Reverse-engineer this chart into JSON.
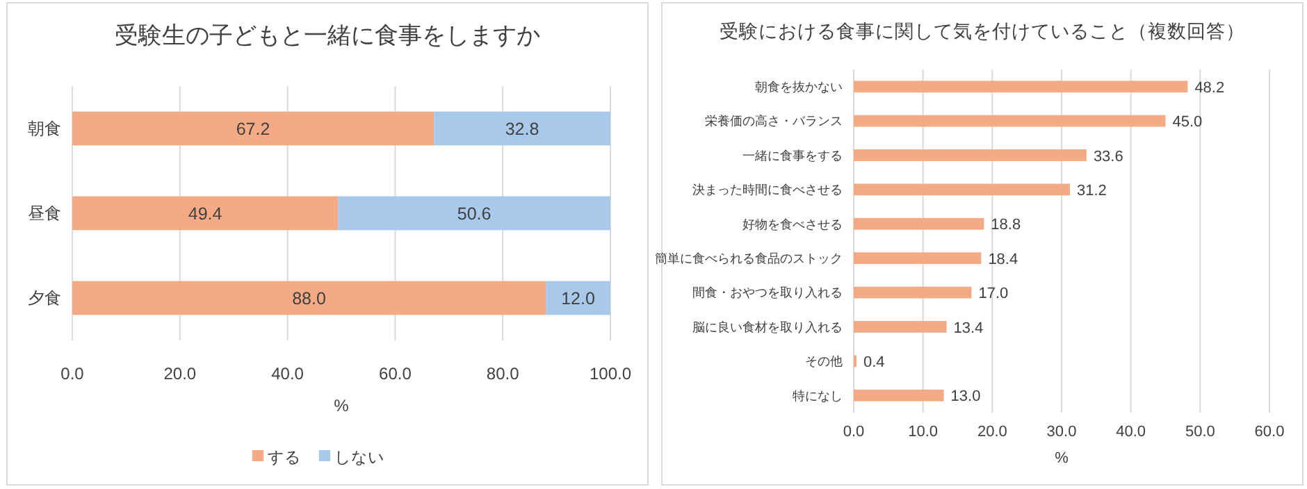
{
  "chart_data": [
    {
      "type": "bar",
      "orientation": "horizontal",
      "stacked": true,
      "title": "受験生の子どもと一緒に食事をしますか",
      "xlabel": "%",
      "categories": [
        "朝食",
        "昼食",
        "夕食"
      ],
      "series": [
        {
          "name": "する",
          "color": "#f4aa85",
          "values": [
            67.2,
            49.4,
            88.0
          ],
          "value_labels": [
            "67.2",
            "49.4",
            "88.0"
          ]
        },
        {
          "name": "しない",
          "color": "#a8c9ea",
          "values": [
            32.8,
            50.6,
            12.0
          ],
          "value_labels": [
            "32.8",
            "50.6",
            "12.0"
          ]
        }
      ],
      "xlim": [
        0,
        100
      ],
      "xticks": [
        {
          "value": 0,
          "label": "0.0"
        },
        {
          "value": 20,
          "label": "20.0"
        },
        {
          "value": 40,
          "label": "40.0"
        },
        {
          "value": 60,
          "label": "60.0"
        },
        {
          "value": 80,
          "label": "80.0"
        },
        {
          "value": 100,
          "label": "100.0"
        }
      ],
      "grid": "x",
      "legend": "bottom"
    },
    {
      "type": "bar",
      "orientation": "horizontal",
      "title": "受験における食事に関して気を付けていること（複数回答）",
      "xlabel": "%",
      "categories": [
        "朝食を抜かない",
        "栄養価の高さ・バランス",
        "一緒に食事をする",
        "決まった時間に食べさせる",
        "好物を食べさせる",
        "簡単に食べられる食品のストック",
        "間食・おやつを取り入れる",
        "脳に良い食材を取り入れる",
        "その他",
        "特になし"
      ],
      "series": [
        {
          "color": "#f4aa85",
          "values": [
            48.2,
            45.0,
            33.6,
            31.2,
            18.8,
            18.4,
            17.0,
            13.4,
            0.4,
            13.0
          ],
          "value_labels": [
            "48.2",
            "45.0",
            "33.6",
            "31.2",
            "18.8",
            "18.4",
            "17.0",
            "13.4",
            "0.4",
            "13.0"
          ]
        }
      ],
      "xlim": [
        0,
        60
      ],
      "xticks": [
        {
          "value": 0,
          "label": "0.0"
        },
        {
          "value": 10,
          "label": "10.0"
        },
        {
          "value": 20,
          "label": "20.0"
        },
        {
          "value": 30,
          "label": "30.0"
        },
        {
          "value": 40,
          "label": "40.0"
        },
        {
          "value": 50,
          "label": "50.0"
        },
        {
          "value": 60,
          "label": "60.0"
        }
      ],
      "grid": "x",
      "legend": false
    }
  ]
}
